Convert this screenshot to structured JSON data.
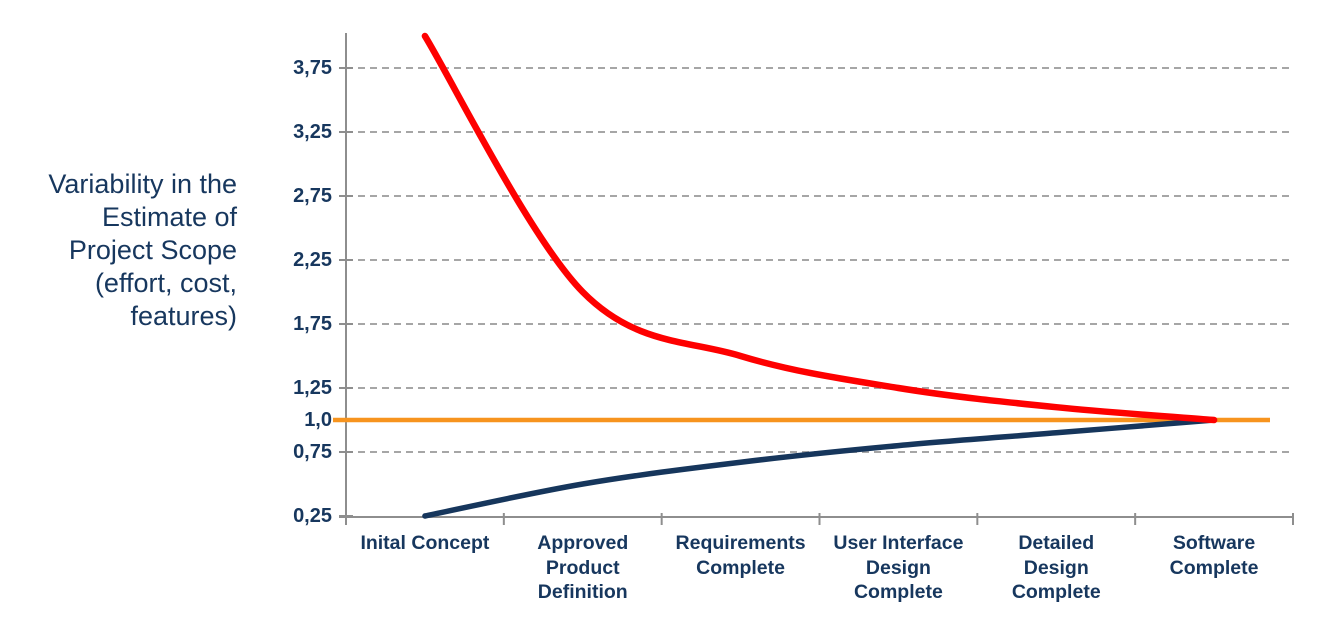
{
  "chart_data": {
    "type": "line",
    "y_axis_title": "Variability in the\nEstimate of\nProject Scope\n(effort, cost,\nfeatures)",
    "categories": [
      "Inital Concept",
      "Approved\nProduct\nDefinition",
      "Requirements\nComplete",
      "User Interface\nDesign\nComplete",
      "Detailed\nDesign\nComplete",
      "Software\nComplete"
    ],
    "series": [
      {
        "name": "upper-estimate-line",
        "color": "#FE0000",
        "stroke_width": 6.5,
        "values": [
          4.0,
          2.0,
          1.5,
          1.25,
          1.1,
          1.0
        ]
      },
      {
        "name": "lower-estimate-line",
        "color": "#16365C",
        "stroke_width": 5.5,
        "values": [
          0.25,
          0.5,
          0.67,
          0.8,
          0.9,
          1.0
        ]
      }
    ],
    "reference_line": {
      "name": "nominal-estimate-line",
      "value": 1.0,
      "color": "#F7941E",
      "stroke_width": 4.5
    },
    "y_ticks": [
      {
        "label": "3,75",
        "value": 3.75,
        "grid": true
      },
      {
        "label": "3,25",
        "value": 3.25,
        "grid": true
      },
      {
        "label": "2,75",
        "value": 2.75,
        "grid": true
      },
      {
        "label": "2,25",
        "value": 2.25,
        "grid": true
      },
      {
        "label": "1,75",
        "value": 1.75,
        "grid": true
      },
      {
        "label": "1,25",
        "value": 1.25,
        "grid": true
      },
      {
        "label": "1,0",
        "value": 1.0,
        "grid": false
      },
      {
        "label": "0,75",
        "value": 0.75,
        "grid": true
      },
      {
        "label": "0,25",
        "value": 0.25,
        "grid": false
      }
    ],
    "ylim": [
      0.25,
      4.03
    ],
    "grid_style": "dashed",
    "legend": "none",
    "colors": {
      "text": "#17375E",
      "gridline": "#A6A6A6",
      "axis": "#8E8E8E",
      "background": "#FFFFFF"
    }
  }
}
